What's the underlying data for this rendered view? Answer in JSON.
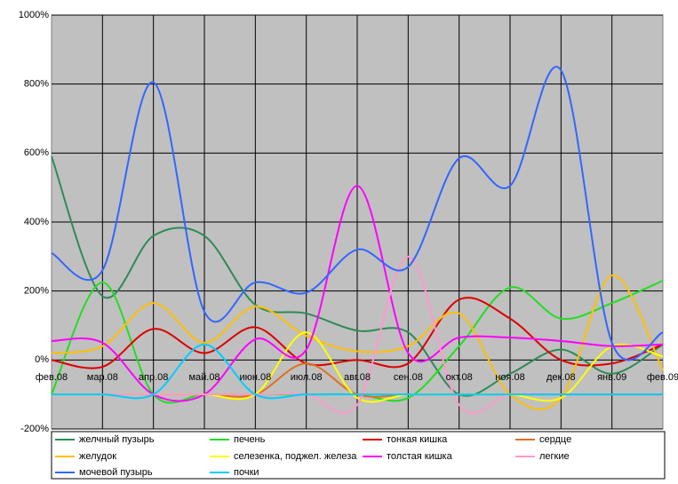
{
  "chart_data": {
    "type": "line",
    "categories": [
      "фев.08",
      "мар.08",
      "апр.08",
      "май.08",
      "июн.08",
      "июл.08",
      "авг.08",
      "сен.08",
      "окт.08",
      "ноя.08",
      "дек.08",
      "янв.09",
      "фев.09"
    ],
    "ylim": [
      -200,
      1000
    ],
    "yticks": [
      {
        "value": -200,
        "label": "-200%"
      },
      {
        "value": 0,
        "label": "0%"
      },
      {
        "value": 200,
        "label": "200%"
      },
      {
        "value": 400,
        "label": "400%"
      },
      {
        "value": 600,
        "label": "600%"
      },
      {
        "value": 800,
        "label": "800%"
      },
      {
        "value": 1000,
        "label": "1000%"
      }
    ],
    "grid": true,
    "smooth": true,
    "series": [
      {
        "name": "желчный пузырь",
        "color": "#2e8b57",
        "values": [
          590,
          185,
          360,
          360,
          160,
          135,
          85,
          80,
          -100,
          -40,
          30,
          -40,
          45
        ]
      },
      {
        "name": "печень",
        "color": "#22dd22",
        "values": [
          -100,
          225,
          -100,
          -100,
          -100,
          -100,
          -100,
          -110,
          40,
          210,
          120,
          165,
          230
        ]
      },
      {
        "name": "тонкая кишка",
        "color": "#dd0000",
        "values": [
          0,
          -20,
          90,
          20,
          95,
          -10,
          0,
          -10,
          175,
          120,
          0,
          -10,
          45
        ]
      },
      {
        "name": "сердце",
        "color": "#e07020",
        "values": [
          -100,
          -100,
          -100,
          -100,
          -100,
          -10,
          -100,
          -100,
          -100,
          -100,
          -100,
          -100,
          -100
        ]
      },
      {
        "name": "желудок",
        "color": "#ffc000",
        "values": [
          20,
          40,
          165,
          50,
          155,
          70,
          25,
          40,
          135,
          -100,
          -110,
          245,
          -30
        ]
      },
      {
        "name": "селезенка, поджел. железа",
        "color": "#ffff00",
        "values": [
          -100,
          -100,
          -100,
          -100,
          -100,
          80,
          -110,
          -100,
          -100,
          -100,
          -110,
          40,
          10
        ]
      },
      {
        "name": "толстая кишка",
        "color": "#ff00ff",
        "values": [
          55,
          50,
          -100,
          -100,
          60,
          30,
          505,
          20,
          65,
          65,
          55,
          40,
          45
        ]
      },
      {
        "name": "легкие",
        "color": "#ff99cc",
        "values": [
          -100,
          -100,
          -100,
          -100,
          -100,
          -100,
          -130,
          300,
          -130,
          -100,
          -100,
          -100,
          -100
        ]
      },
      {
        "name": "мочевой пузырь",
        "color": "#3366ff",
        "values": [
          310,
          260,
          805,
          140,
          225,
          195,
          320,
          270,
          585,
          505,
          840,
          50,
          80
        ]
      },
      {
        "name": "почки",
        "color": "#00ccff",
        "values": [
          -100,
          -100,
          -100,
          45,
          -100,
          -100,
          -100,
          -100,
          -100,
          -100,
          -100,
          -100,
          -100
        ]
      }
    ]
  }
}
